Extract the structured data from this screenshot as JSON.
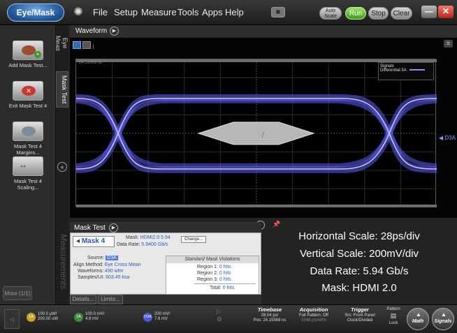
{
  "app": {
    "mode_button": "Eye/Mask",
    "menu": [
      "File",
      "Setup",
      "Measure",
      "Tools",
      "Apps",
      "Help"
    ],
    "buttons": {
      "auto_scale": "Auto Scale",
      "run": "Run",
      "stop": "Stop",
      "clear": "Clear"
    }
  },
  "sidebar": {
    "items": [
      {
        "label": "Add Mask Test..."
      },
      {
        "label": "Exit Mask Test 4"
      },
      {
        "label": "Mask Test 4 Margins..."
      },
      {
        "label": "Mask Test 4 Scaling..."
      }
    ],
    "more": "More (1/1)",
    "tabs": [
      "Eye Meas",
      "Mask Test"
    ],
    "measurements_tab": "Measurements"
  },
  "waveform": {
    "title": "Waveform",
    "time_label": "24.15569 ns",
    "legend_title": "Signals",
    "legend_entry": "Differential 3A",
    "marker": "D3A",
    "trace_color": "#6b6bff"
  },
  "mask_test": {
    "title": "Mask Test",
    "mask_selector": "Mask 4",
    "mask_label": "Mask:",
    "mask_value": "HDMI2.0 5.94",
    "change": "Change...",
    "data_rate_label": "Data Rate:",
    "data_rate_value": "5.9400 Gb/s",
    "source_label": "Source:",
    "source_value": "D3A",
    "align_label": "Align Method:",
    "align_value": "Eye Cross Mean",
    "waveforms_label": "Waveforms:",
    "waveforms_value": "490 wfm",
    "samples_label": "Samples/UI:",
    "samples_value": "603.45 ksa",
    "violations_title": "Standard Mask Violations",
    "regions": [
      {
        "label": "Region 1:",
        "value": "0 hits"
      },
      {
        "label": "Region 2:",
        "value": "0 hits"
      },
      {
        "label": "Region 3:",
        "value": "0 hits"
      }
    ],
    "total_label": "Total:",
    "total_value": "0 hits",
    "details": "Details...",
    "limits": "Limits..."
  },
  "annotations": [
    "Horizontal Scale: 28ps/div",
    "Vertical Scale: 200mV/div",
    "Data Rate: 5.94 Gb/s",
    "Mask: HDMI 2.0"
  ],
  "status": {
    "ch1": {
      "badge": "1A",
      "line1": "100.0 µW/",
      "line2": "200.00 uW"
    },
    "ch2": {
      "badge": "2A",
      "line1": "100.0 mV/",
      "line2": "4.9 mV"
    },
    "ch3": {
      "badge": "D3A",
      "line1": "200 mV/",
      "line2": "7.6 mV"
    },
    "timebase": {
      "title": "Timebase",
      "line1": "28.04 ps/",
      "line2": "Pos: 24.15569 ns"
    },
    "acquisition": {
      "title": "Acquisition",
      "line1": "Full Pattern: Off",
      "line2": "2048 pts/wfm"
    },
    "trigger": {
      "title": "Trigger",
      "line1": "Src: Front Panel",
      "line2": "Clock/Divided"
    },
    "pattern": {
      "title": "Pattern",
      "sub": "Lock"
    },
    "math": "Math",
    "signals": "Signals"
  }
}
